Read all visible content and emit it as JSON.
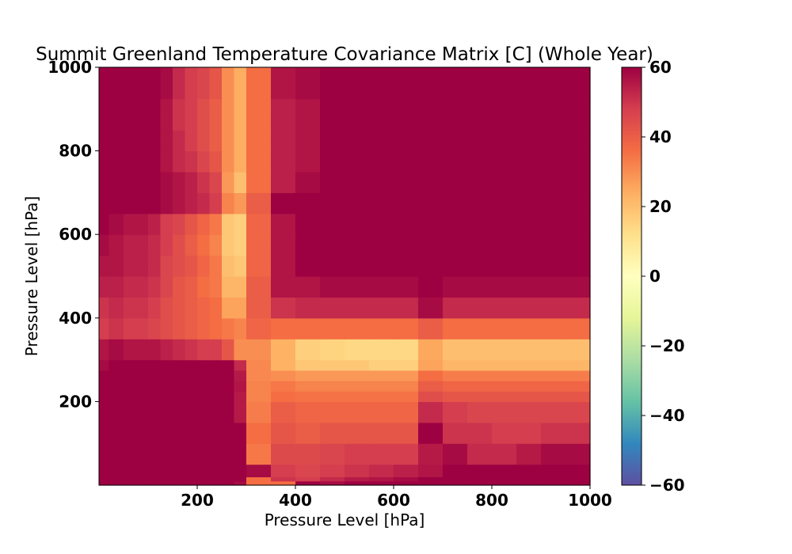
{
  "chart_data": {
    "type": "heatmap",
    "title": "Summit Greenland Temperature Covariance Matrix [C] (Whole Year)",
    "xlabel": "Pressure Level [hPa]",
    "ylabel": "Pressure Level [hPa]",
    "xlim": [
      0,
      1000
    ],
    "ylim": [
      0,
      1000
    ],
    "x_ticks": [
      200,
      400,
      600,
      800,
      1000
    ],
    "y_ticks": [
      200,
      400,
      600,
      800,
      1000
    ],
    "colorbar": {
      "min": -60,
      "max": 60,
      "ticks": [
        60,
        40,
        20,
        0,
        -20,
        -40,
        -60
      ],
      "colormap": "Spectral_r"
    },
    "grid": false,
    "x_edges": [
      0,
      20,
      50,
      100,
      125,
      150,
      175,
      200,
      225,
      250,
      275,
      300,
      350,
      400,
      450,
      500,
      550,
      600,
      650,
      700,
      750,
      800,
      850,
      900,
      950,
      1000
    ],
    "y_edges": [
      0,
      10,
      20,
      50,
      100,
      150,
      200,
      225,
      250,
      275,
      300,
      350,
      400,
      450,
      500,
      550,
      600,
      650,
      700,
      750,
      800,
      850,
      900,
      925,
      950,
      975,
      1000
    ],
    "z": [
      [
        60,
        60,
        60,
        60,
        60,
        60,
        60,
        60,
        60,
        60,
        58,
        36,
        36,
        60,
        58,
        60,
        60,
        60,
        60,
        60,
        60,
        60,
        60,
        60,
        60
      ],
      [
        60,
        60,
        60,
        60,
        60,
        60,
        60,
        60,
        60,
        60,
        60,
        36,
        50,
        48,
        52,
        55,
        56,
        58,
        60,
        60,
        60,
        60,
        60,
        60,
        60
      ],
      [
        60,
        60,
        60,
        60,
        60,
        60,
        60,
        60,
        60,
        60,
        60,
        58,
        48,
        46,
        48,
        50,
        52,
        54,
        56,
        60,
        60,
        60,
        60,
        60,
        60
      ],
      [
        60,
        60,
        60,
        60,
        60,
        60,
        60,
        60,
        60,
        60,
        60,
        34,
        45,
        45,
        46,
        48,
        48,
        48,
        55,
        58,
        52,
        52,
        55,
        58,
        58
      ],
      [
        60,
        60,
        60,
        60,
        60,
        60,
        60,
        60,
        60,
        60,
        60,
        36,
        42,
        40,
        42,
        42,
        42,
        42,
        60,
        50,
        50,
        48,
        48,
        50,
        50
      ],
      [
        60,
        60,
        60,
        60,
        60,
        60,
        60,
        60,
        60,
        60,
        55,
        33,
        40,
        38,
        38,
        38,
        38,
        38,
        52,
        48,
        46,
        46,
        46,
        46,
        46
      ],
      [
        60,
        60,
        60,
        60,
        60,
        60,
        60,
        60,
        60,
        60,
        55,
        32,
        36,
        35,
        35,
        35,
        35,
        35,
        44,
        42,
        42,
        42,
        42,
        42,
        42
      ],
      [
        60,
        60,
        60,
        60,
        60,
        60,
        60,
        60,
        60,
        60,
        56,
        32,
        34,
        32,
        32,
        32,
        32,
        32,
        40,
        38,
        38,
        38,
        38,
        38,
        38
      ],
      [
        60,
        60,
        60,
        60,
        60,
        60,
        60,
        60,
        60,
        60,
        55,
        31,
        30,
        28,
        28,
        28,
        28,
        28,
        36,
        33,
        33,
        33,
        33,
        33,
        33
      ],
      [
        58,
        60,
        60,
        60,
        60,
        60,
        60,
        60,
        60,
        60,
        52,
        31,
        23,
        18,
        18,
        18,
        16,
        16,
        26,
        22,
        22,
        22,
        22,
        22,
        22
      ],
      [
        56,
        58,
        56,
        56,
        54,
        52,
        50,
        48,
        48,
        42,
        30,
        30,
        23,
        16,
        15,
        14,
        14,
        14,
        25,
        20,
        20,
        20,
        20,
        20,
        20
      ],
      [
        48,
        50,
        48,
        46,
        44,
        42,
        40,
        38,
        36,
        34,
        32,
        38,
        36,
        36,
        36,
        36,
        36,
        36,
        40,
        36,
        36,
        36,
        36,
        36,
        36
      ],
      [
        50,
        52,
        50,
        48,
        44,
        42,
        40,
        38,
        36,
        26,
        26,
        40,
        50,
        52,
        52,
        52,
        52,
        52,
        58,
        52,
        52,
        52,
        52,
        52,
        52
      ],
      [
        54,
        54,
        52,
        50,
        46,
        42,
        40,
        36,
        34,
        22,
        22,
        40,
        56,
        56,
        58,
        58,
        58,
        58,
        60,
        58,
        58,
        58,
        58,
        58,
        58
      ],
      [
        56,
        56,
        54,
        52,
        46,
        44,
        42,
        38,
        34,
        20,
        18,
        38,
        56,
        60,
        60,
        60,
        60,
        60,
        60,
        60,
        60,
        60,
        60,
        60,
        60
      ],
      [
        58,
        56,
        54,
        52,
        48,
        44,
        40,
        36,
        32,
        18,
        16,
        38,
        56,
        60,
        60,
        60,
        60,
        60,
        60,
        60,
        60,
        60,
        60,
        60,
        60
      ],
      [
        60,
        58,
        56,
        54,
        48,
        46,
        42,
        38,
        34,
        18,
        16,
        38,
        56,
        60,
        60,
        60,
        60,
        60,
        60,
        60,
        60,
        60,
        60,
        60,
        60
      ],
      [
        60,
        60,
        60,
        60,
        58,
        56,
        54,
        52,
        48,
        32,
        28,
        40,
        60,
        60,
        60,
        60,
        60,
        60,
        60,
        60,
        60,
        60,
        60,
        60,
        60
      ],
      [
        60,
        60,
        60,
        60,
        58,
        56,
        54,
        50,
        46,
        28,
        20,
        36,
        54,
        58,
        60,
        60,
        60,
        60,
        60,
        60,
        60,
        60,
        60,
        60,
        60
      ],
      [
        60,
        60,
        60,
        60,
        56,
        52,
        50,
        46,
        42,
        30,
        24,
        36,
        54,
        56,
        60,
        60,
        60,
        60,
        60,
        60,
        60,
        60,
        60,
        60,
        60
      ],
      [
        60,
        60,
        60,
        60,
        56,
        52,
        48,
        44,
        40,
        30,
        24,
        36,
        54,
        56,
        60,
        60,
        60,
        60,
        60,
        60,
        60,
        60,
        60,
        60,
        60
      ],
      [
        60,
        60,
        60,
        60,
        56,
        50,
        48,
        44,
        40,
        30,
        24,
        36,
        54,
        56,
        60,
        60,
        60,
        60,
        60,
        60,
        60,
        60,
        60,
        60,
        60
      ],
      [
        60,
        60,
        60,
        60,
        56,
        50,
        48,
        44,
        40,
        30,
        24,
        36,
        54,
        56,
        60,
        60,
        60,
        60,
        60,
        60,
        60,
        60,
        60,
        60,
        60
      ],
      [
        60,
        60,
        60,
        60,
        58,
        52,
        48,
        46,
        42,
        30,
        24,
        36,
        56,
        58,
        60,
        60,
        60,
        60,
        60,
        60,
        60,
        60,
        60,
        60,
        60
      ],
      [
        60,
        60,
        60,
        60,
        58,
        52,
        48,
        46,
        42,
        30,
        24,
        36,
        56,
        58,
        60,
        60,
        60,
        60,
        60,
        60,
        60,
        60,
        60,
        60,
        60
      ],
      [
        60,
        60,
        60,
        60,
        58,
        52,
        48,
        46,
        42,
        30,
        24,
        36,
        56,
        58,
        60,
        60,
        60,
        60,
        60,
        60,
        60,
        60,
        60,
        60,
        60
      ]
    ]
  }
}
